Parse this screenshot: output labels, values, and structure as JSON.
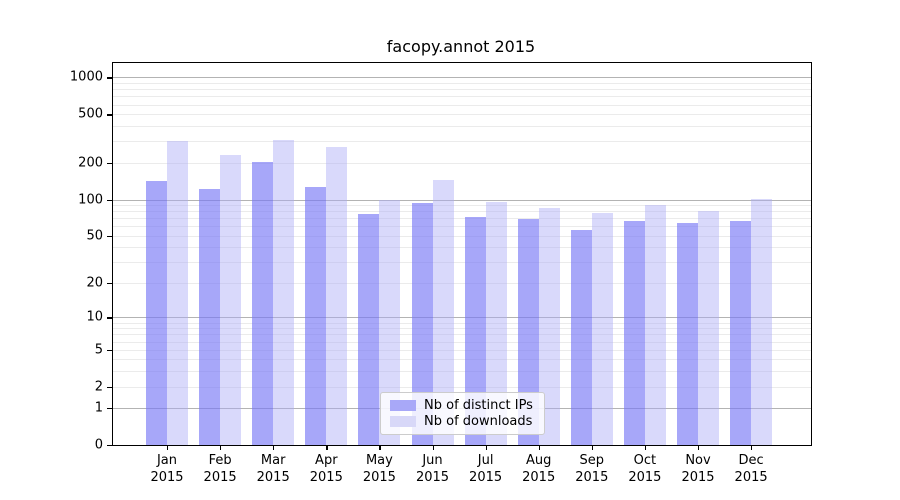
{
  "title": "facopy.annot 2015",
  "chart_data": {
    "type": "bar",
    "title": "facopy.annot 2015",
    "xlabel": "",
    "ylabel": "",
    "y_scale": "log(1+x)",
    "ylim": [
      0,
      1320
    ],
    "y_ticks": [
      0,
      1,
      2,
      5,
      10,
      20,
      50,
      100,
      200,
      500,
      1000
    ],
    "grid": "on",
    "legend_position": "lower center",
    "categories": [
      "Jan 2015",
      "Feb 2015",
      "Mar 2015",
      "Apr 2015",
      "May 2015",
      "Jun 2015",
      "Jul 2015",
      "Aug 2015",
      "Sep 2015",
      "Oct 2015",
      "Nov 2015",
      "Dec 2015"
    ],
    "series": [
      {
        "key": "distinct-ips",
        "name": "Nb of distinct IPs",
        "color": "#a8a8f8",
        "fill": "rgba(120,120,246,0.65)",
        "values": [
          143,
          122,
          203,
          128,
          76,
          94,
          72,
          69,
          56,
          66,
          64,
          66
        ]
      },
      {
        "key": "downloads",
        "name": "Nb of downloads",
        "color": "#d8d8f8",
        "fill": "rgba(170,170,246,0.45)",
        "values": [
          305,
          234,
          311,
          269,
          100,
          145,
          95,
          85,
          77,
          90,
          80,
          101
        ]
      }
    ]
  },
  "colors": {
    "major_grid": "#b3b3b3",
    "minor_grid": "#ebebeb",
    "spine": "#000000",
    "background": "#ffffff"
  }
}
